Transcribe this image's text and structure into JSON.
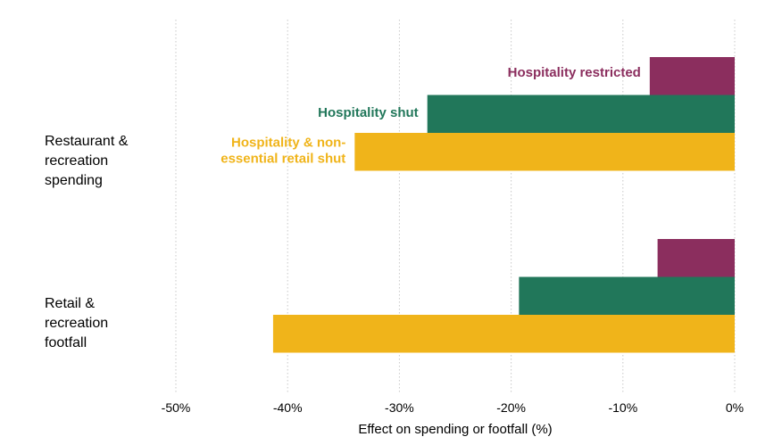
{
  "chart_data": {
    "type": "bar",
    "orientation": "horizontal",
    "title": "",
    "xlabel": "Effect on spending or footfall (%)",
    "ylabel": "",
    "xlim": [
      -50,
      0
    ],
    "xticks": [
      -50,
      -40,
      -30,
      -20,
      -10,
      0
    ],
    "xtick_labels": [
      "-50%",
      "-40%",
      "-30%",
      "-20%",
      "-10%",
      "0%"
    ],
    "grid": "vertical dotted",
    "categories": [
      "Restaurant & recreation spending",
      "Retail & recreation footfall"
    ],
    "category_lines": [
      [
        "Restaurant &",
        "recreation",
        "spending"
      ],
      [
        "Retail &",
        "recreation",
        "footfall"
      ]
    ],
    "series": [
      {
        "name": "Hospitality restricted",
        "label_lines": [
          "Hospitality restricted"
        ],
        "color": "#8b2e5e",
        "values": [
          -7.6,
          -6.9
        ]
      },
      {
        "name": "Hospitality shut",
        "label_lines": [
          "Hospitality shut"
        ],
        "color": "#21775a",
        "values": [
          -27.5,
          -19.3
        ]
      },
      {
        "name": "Hospitality & non-essential retail shut",
        "label_lines": [
          "Hospitality & non-",
          "essential retail shut"
        ],
        "color": "#f0b41a",
        "values": [
          -34.0,
          -41.3
        ]
      }
    ]
  }
}
